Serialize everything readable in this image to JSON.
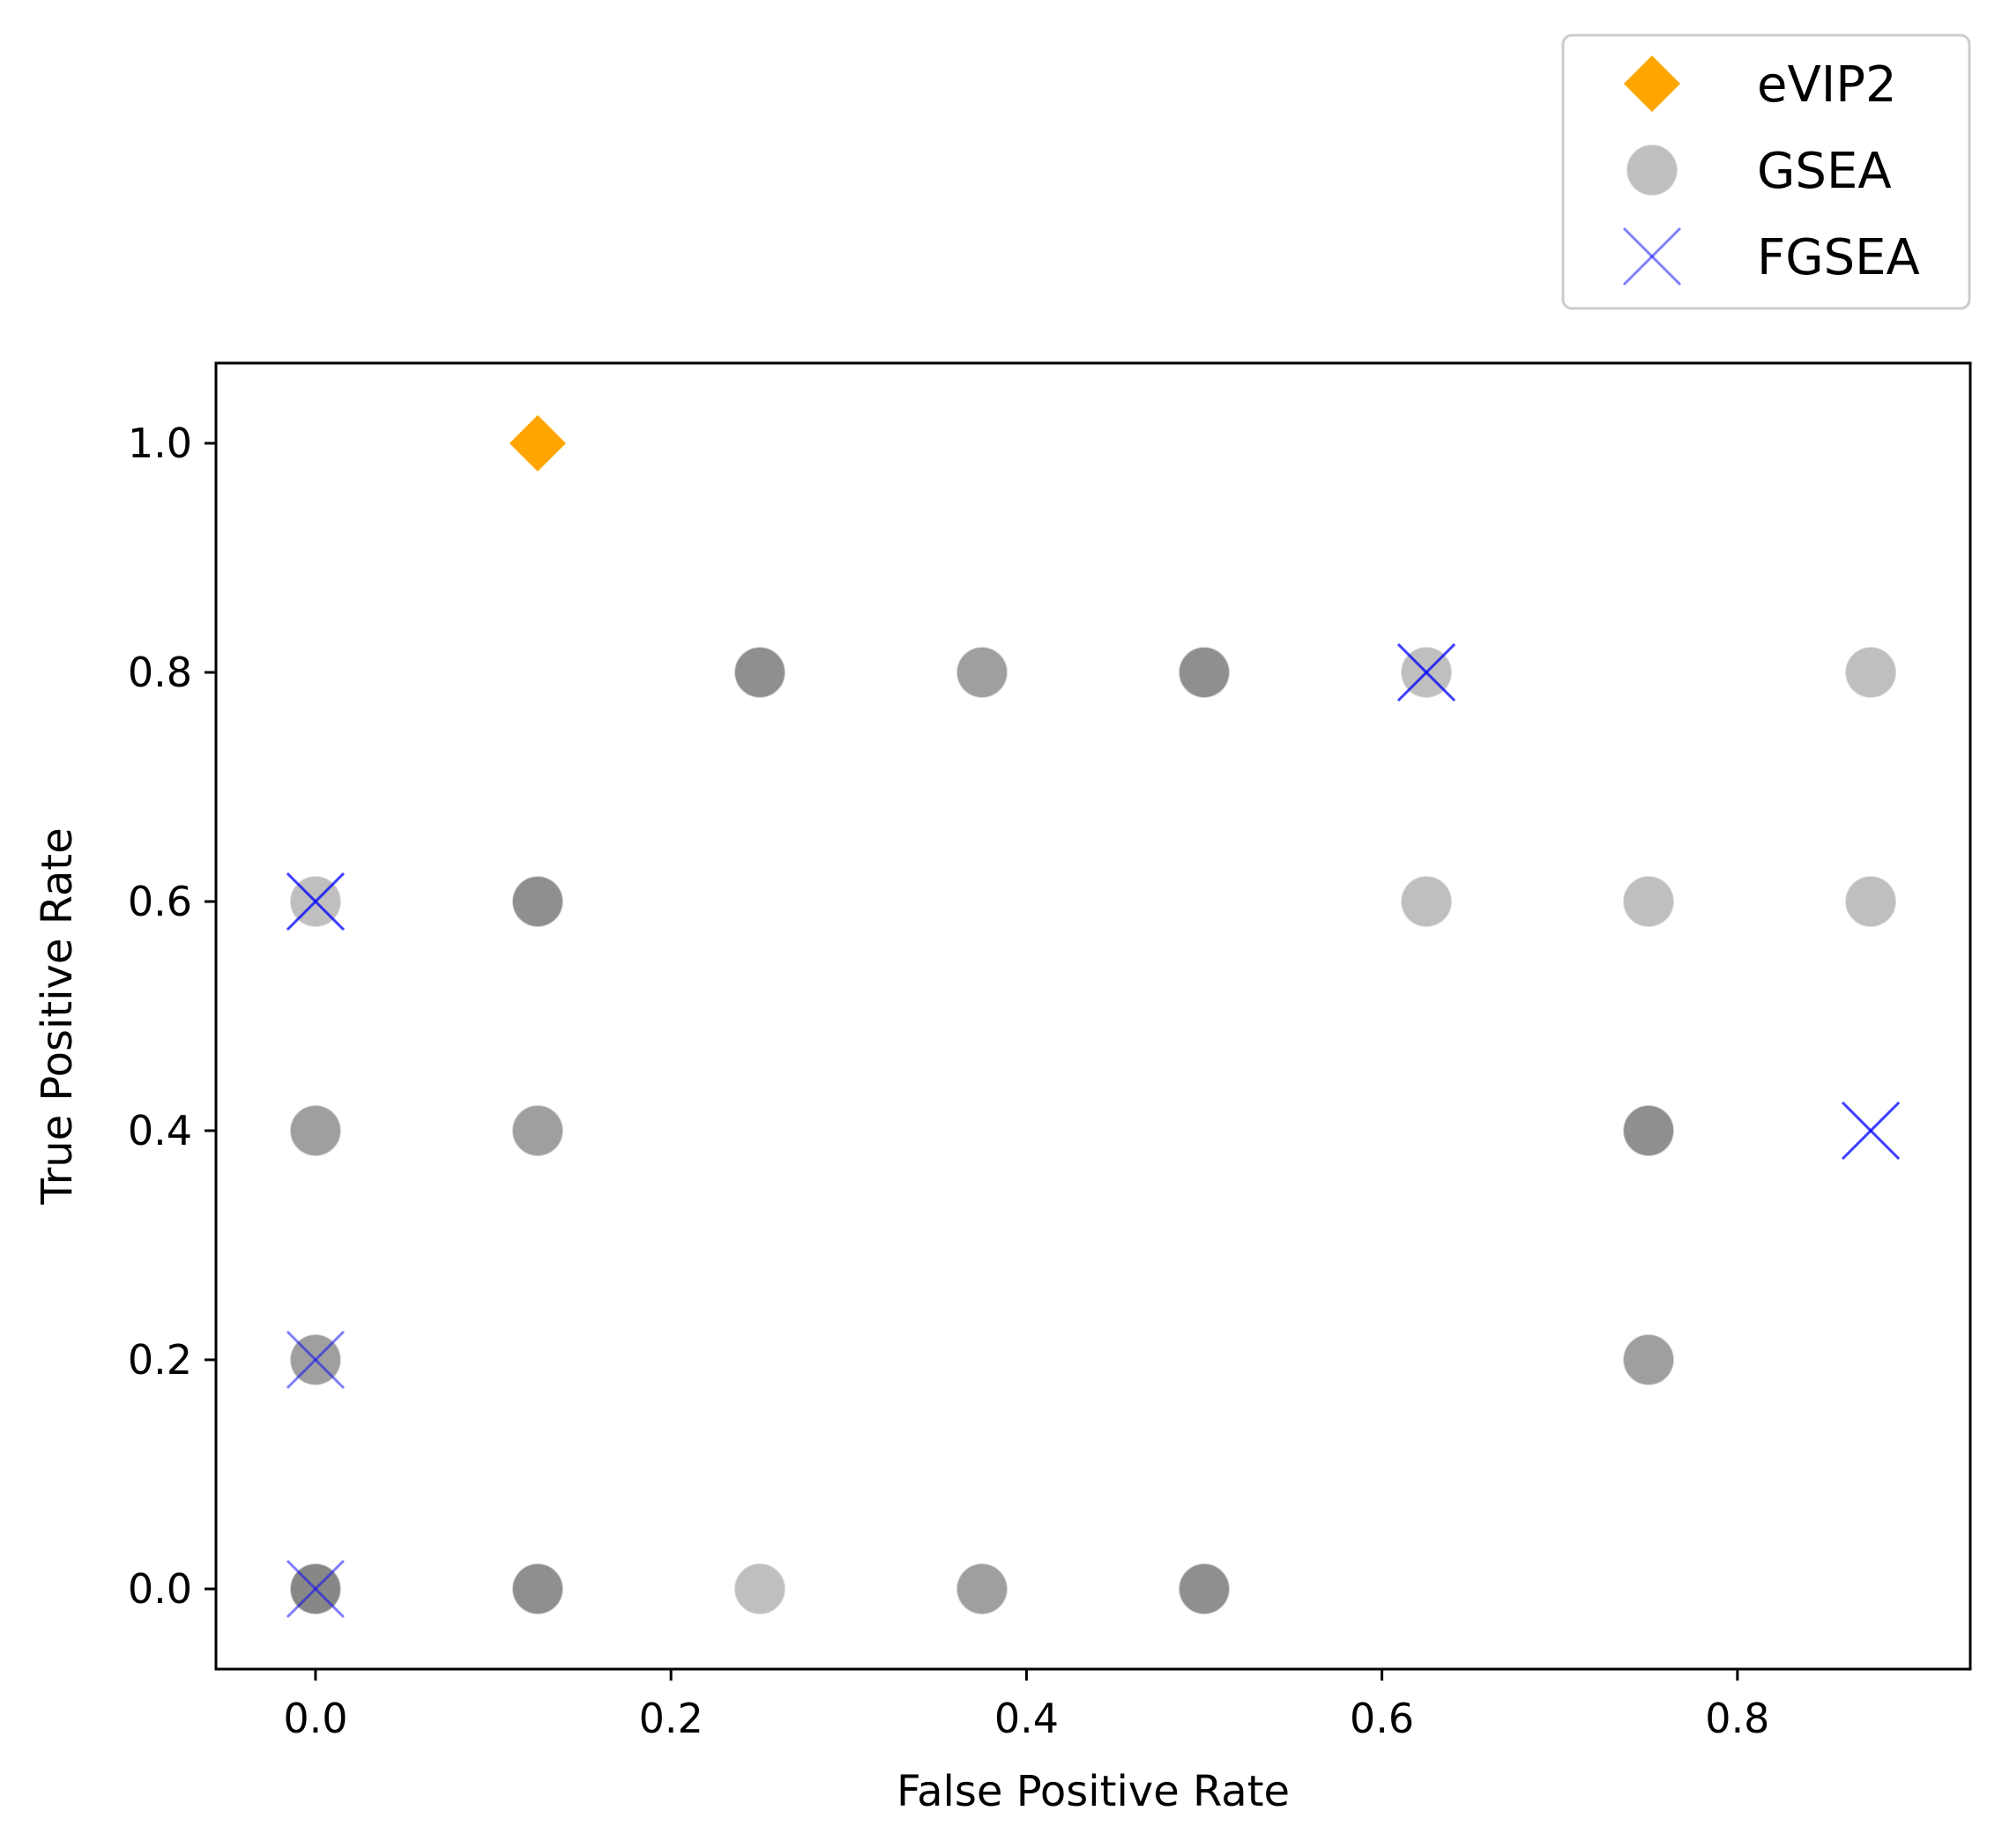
{
  "chart_data": {
    "type": "scatter",
    "title": "",
    "xlabel": "False Positive Rate",
    "ylabel": "True Positive Rate",
    "xlim": [
      -0.056,
      0.931
    ],
    "ylim": [
      -0.07,
      1.07
    ],
    "x_ticks": [
      0.0,
      0.2,
      0.4,
      0.6,
      0.8
    ],
    "x_tick_labels": [
      "0.0",
      "0.2",
      "0.4",
      "0.6",
      "0.8"
    ],
    "y_ticks": [
      0.0,
      0.2,
      0.4,
      0.6,
      0.8,
      1.0
    ],
    "y_tick_labels": [
      "0.0",
      "0.2",
      "0.4",
      "0.6",
      "0.8",
      "1.0"
    ],
    "grid": false,
    "legend_position": "top-right, outside above plot",
    "series": [
      {
        "name": "eVIP2",
        "marker": "diamond",
        "color": "#ffa500",
        "points": [
          {
            "x": 0.125,
            "y": 1.0
          }
        ]
      },
      {
        "name": "GSEA",
        "marker": "circle",
        "color": "#808080",
        "alpha": 0.5,
        "points": [
          {
            "x": 0.0,
            "y": 0.0,
            "count": 4
          },
          {
            "x": 0.0,
            "y": 0.2,
            "count": 2
          },
          {
            "x": 0.0,
            "y": 0.4,
            "count": 2
          },
          {
            "x": 0.0,
            "y": 0.6,
            "count": 1
          },
          {
            "x": 0.125,
            "y": 0.0,
            "count": 3
          },
          {
            "x": 0.125,
            "y": 0.4,
            "count": 2
          },
          {
            "x": 0.125,
            "y": 0.6,
            "count": 3
          },
          {
            "x": 0.25,
            "y": 0.0,
            "count": 1
          },
          {
            "x": 0.25,
            "y": 0.8,
            "count": 3
          },
          {
            "x": 0.375,
            "y": 0.0,
            "count": 2
          },
          {
            "x": 0.375,
            "y": 0.8,
            "count": 2
          },
          {
            "x": 0.5,
            "y": 0.0,
            "count": 3
          },
          {
            "x": 0.5,
            "y": 0.8,
            "count": 3
          },
          {
            "x": 0.625,
            "y": 0.6,
            "count": 1
          },
          {
            "x": 0.625,
            "y": 0.8,
            "count": 1
          },
          {
            "x": 0.75,
            "y": 0.2,
            "count": 2
          },
          {
            "x": 0.75,
            "y": 0.4,
            "count": 3
          },
          {
            "x": 0.75,
            "y": 0.6,
            "count": 1
          },
          {
            "x": 0.875,
            "y": 0.6,
            "count": 1
          },
          {
            "x": 0.875,
            "y": 0.8,
            "count": 1
          }
        ]
      },
      {
        "name": "FGSEA",
        "marker": "x",
        "color": "#0000ff",
        "alpha": 0.5,
        "points": [
          {
            "x": 0.0,
            "y": 0.0,
            "count": 1
          },
          {
            "x": 0.0,
            "y": 0.2,
            "count": 1
          },
          {
            "x": 0.0,
            "y": 0.6,
            "count": 2
          },
          {
            "x": 0.625,
            "y": 0.8,
            "count": 2
          },
          {
            "x": 0.875,
            "y": 0.4,
            "count": 2
          }
        ]
      }
    ]
  }
}
